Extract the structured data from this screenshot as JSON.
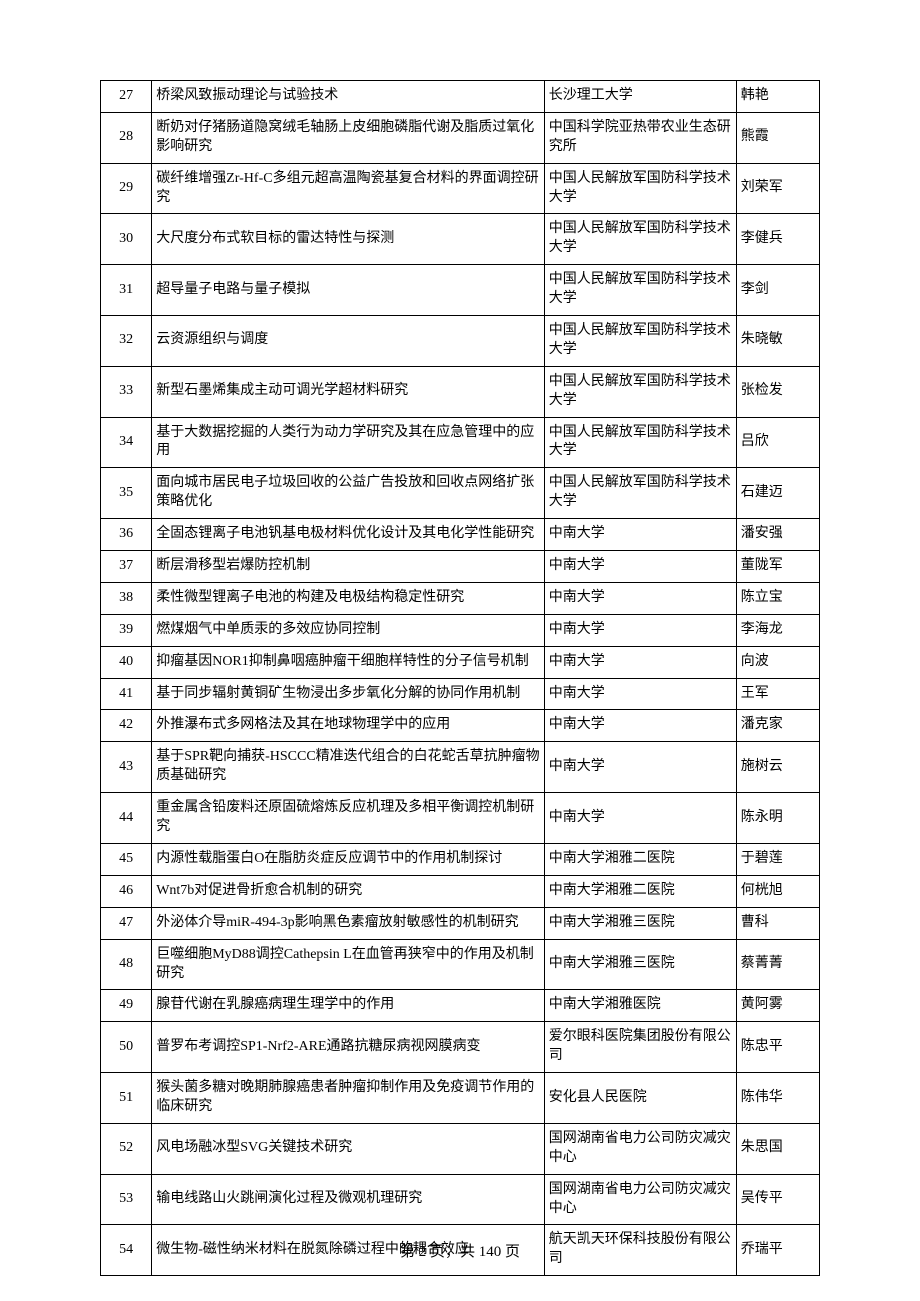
{
  "footer": "第 2 页，共 140 页",
  "rows": [
    {
      "n": "27",
      "title": "桥梁风致振动理论与试验技术",
      "inst": "长沙理工大学",
      "name": "韩艳"
    },
    {
      "n": "28",
      "title": "断奶对仔猪肠道隐窝绒毛轴肠上皮细胞磷脂代谢及脂质过氧化影响研究",
      "inst": "中国科学院亚热带农业生态研究所",
      "name": "熊霞"
    },
    {
      "n": "29",
      "title": "碳纤维增强Zr-Hf-C多组元超高温陶瓷基复合材料的界面调控研究",
      "inst": "中国人民解放军国防科学技术大学",
      "name": "刘荣军"
    },
    {
      "n": "30",
      "title": "大尺度分布式软目标的雷达特性与探测",
      "inst": "中国人民解放军国防科学技术大学",
      "name": "李健兵"
    },
    {
      "n": "31",
      "title": "超导量子电路与量子模拟",
      "inst": "中国人民解放军国防科学技术大学",
      "name": "李剑"
    },
    {
      "n": "32",
      "title": "云资源组织与调度",
      "inst": "中国人民解放军国防科学技术大学",
      "name": "朱晓敏"
    },
    {
      "n": "33",
      "title": "新型石墨烯集成主动可调光学超材料研究",
      "inst": "中国人民解放军国防科学技术大学",
      "name": "张检发"
    },
    {
      "n": "34",
      "title": "基于大数据挖掘的人类行为动力学研究及其在应急管理中的应用",
      "inst": "中国人民解放军国防科学技术大学",
      "name": "吕欣"
    },
    {
      "n": "35",
      "title": "面向城市居民电子垃圾回收的公益广告投放和回收点网络扩张策略优化",
      "inst": "中国人民解放军国防科学技术大学",
      "name": "石建迈"
    },
    {
      "n": "36",
      "title": "全固态锂离子电池钒基电极材料优化设计及其电化学性能研究",
      "inst": "中南大学",
      "name": "潘安强"
    },
    {
      "n": "37",
      "title": "断层滑移型岩爆防控机制",
      "inst": "中南大学",
      "name": "董陇军"
    },
    {
      "n": "38",
      "title": "柔性微型锂离子电池的构建及电极结构稳定性研究",
      "inst": "中南大学",
      "name": "陈立宝"
    },
    {
      "n": "39",
      "title": "燃煤烟气中单质汞的多效应协同控制",
      "inst": "中南大学",
      "name": "李海龙"
    },
    {
      "n": "40",
      "title": "抑瘤基因NOR1抑制鼻咽癌肿瘤干细胞样特性的分子信号机制",
      "inst": "中南大学",
      "name": "向波"
    },
    {
      "n": "41",
      "title": "基于同步辐射黄铜矿生物浸出多步氧化分解的协同作用机制",
      "inst": "中南大学",
      "name": "王军"
    },
    {
      "n": "42",
      "title": "外推瀑布式多网格法及其在地球物理学中的应用",
      "inst": "中南大学",
      "name": "潘克家"
    },
    {
      "n": "43",
      "title": "基于SPR靶向捕获-HSCCC精准迭代组合的白花蛇舌草抗肿瘤物质基础研究",
      "inst": "中南大学",
      "name": "施树云"
    },
    {
      "n": "44",
      "title": "重金属含铅废料还原固硫熔炼反应机理及多相平衡调控机制研究",
      "inst": "中南大学",
      "name": "陈永明"
    },
    {
      "n": "45",
      "title": "内源性载脂蛋白O在脂肪炎症反应调节中的作用机制探讨",
      "inst": "中南大学湘雅二医院",
      "name": "于碧莲"
    },
    {
      "n": "46",
      "title": "Wnt7b对促进骨折愈合机制的研究",
      "inst": "中南大学湘雅二医院",
      "name": "何桄旭"
    },
    {
      "n": "47",
      "title": "外泌体介导miR-494-3p影响黑色素瘤放射敏感性的机制研究",
      "inst": "中南大学湘雅三医院",
      "name": "曹科"
    },
    {
      "n": "48",
      "title": "巨噬细胞MyD88调控Cathepsin L在血管再狭窄中的作用及机制研究",
      "inst": "中南大学湘雅三医院",
      "name": "蔡菁菁"
    },
    {
      "n": "49",
      "title": "腺苷代谢在乳腺癌病理生理学中的作用",
      "inst": "中南大学湘雅医院",
      "name": "黄阿雾"
    },
    {
      "n": "50",
      "title": "普罗布考调控SP1-Nrf2-ARE通路抗糖尿病视网膜病变",
      "inst": "爱尔眼科医院集团股份有限公司",
      "name": "陈忠平"
    },
    {
      "n": "51",
      "title": "猴头菌多糖对晚期肺腺癌患者肿瘤抑制作用及免疫调节作用的临床研究",
      "inst": "安化县人民医院",
      "name": "陈伟华"
    },
    {
      "n": "52",
      "title": "风电场融冰型SVG关键技术研究",
      "inst": "国网湖南省电力公司防灾减灾中心",
      "name": "朱思国"
    },
    {
      "n": "53",
      "title": "输电线路山火跳闸演化过程及微观机理研究",
      "inst": "国网湖南省电力公司防灾减灾中心",
      "name": "吴传平"
    },
    {
      "n": "54",
      "title": "微生物-磁性纳米材料在脱氮除磷过程中的耦合效应",
      "inst": "航天凯天环保科技股份有限公司",
      "name": "乔瑞平"
    }
  ]
}
